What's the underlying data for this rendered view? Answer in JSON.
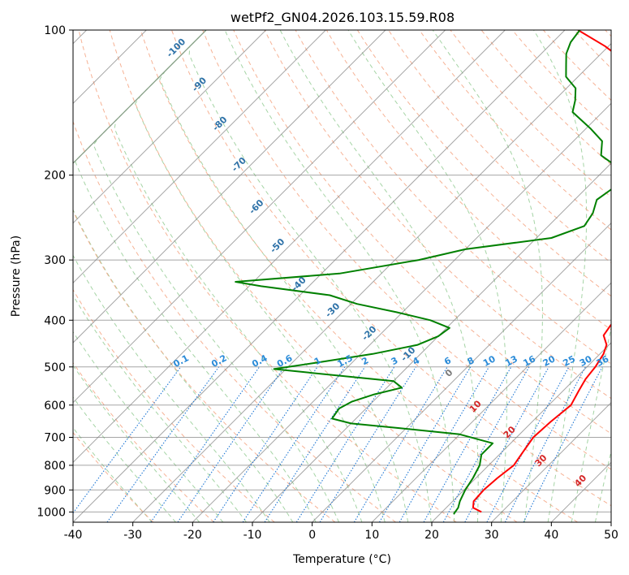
{
  "chart_data": {
    "type": "line",
    "title": "wetPf2_GN04.2026.103.15.59.R08",
    "xlabel": "Temperature (°C)",
    "ylabel": "Pressure (hPa)",
    "xlim": [
      -40,
      50
    ],
    "ylim": [
      1050,
      100
    ],
    "y_scale": "log",
    "x_ticks": [
      "-40",
      "-30",
      "-20",
      "-10",
      "0",
      "10",
      "20",
      "30",
      "40",
      "50"
    ],
    "y_ticks": [
      "100",
      "200",
      "300",
      "400",
      "500",
      "600",
      "700",
      "800",
      "900",
      "1000"
    ],
    "grid": true,
    "series": [
      {
        "color": "#ff0000",
        "points": [
          [
            26.6,
            1000
          ],
          [
            24.5,
            980
          ],
          [
            23.5,
            950
          ],
          [
            23.3,
            900
          ],
          [
            23.6,
            850
          ],
          [
            24.2,
            800
          ],
          [
            23.5,
            750
          ],
          [
            22.8,
            700
          ],
          [
            23.1,
            650
          ],
          [
            23.7,
            600
          ],
          [
            22.6,
            560
          ],
          [
            21.8,
            530
          ],
          [
            21.4,
            500
          ],
          [
            20.6,
            470
          ],
          [
            19.6,
            450
          ],
          [
            17.5,
            430
          ],
          [
            17.0,
            410
          ],
          [
            16.9,
            390
          ],
          [
            16.2,
            370
          ],
          [
            14.1,
            340
          ],
          [
            11.5,
            310
          ],
          [
            9.0,
            280
          ],
          [
            5.5,
            250
          ],
          [
            1.8,
            225
          ],
          [
            -1.5,
            205
          ],
          [
            -3.6,
            190
          ],
          [
            -6.7,
            172
          ],
          [
            -9.2,
            160
          ],
          [
            -13.0,
            145
          ],
          [
            -17.6,
            130
          ],
          [
            -23.4,
            118
          ],
          [
            -30.6,
            108
          ],
          [
            -37.8,
            100
          ]
        ]
      },
      {
        "color": "#008000",
        "points": [
          [
            22.3,
            1010
          ],
          [
            22.0,
            980
          ],
          [
            21.2,
            950
          ],
          [
            20.2,
            900
          ],
          [
            19.5,
            850
          ],
          [
            18.5,
            800
          ],
          [
            17.0,
            760
          ],
          [
            17.0,
            720
          ],
          [
            10.0,
            690
          ],
          [
            -1.0,
            670
          ],
          [
            -10.0,
            655
          ],
          [
            -14.0,
            640
          ],
          [
            -14.5,
            610
          ],
          [
            -13.5,
            590
          ],
          [
            -11.0,
            570
          ],
          [
            -7.5,
            552
          ],
          [
            -10.0,
            535
          ],
          [
            -21.0,
            520
          ],
          [
            -32.0,
            505
          ],
          [
            -26.0,
            490
          ],
          [
            -18.0,
            470
          ],
          [
            -12.0,
            450
          ],
          [
            -10.0,
            432
          ],
          [
            -9.5,
            415
          ],
          [
            -14.0,
            400
          ],
          [
            -21.0,
            385
          ],
          [
            -29.0,
            370
          ],
          [
            -35.0,
            355
          ],
          [
            -48.0,
            340
          ],
          [
            -53.0,
            333
          ],
          [
            -37.0,
            320
          ],
          [
            -26.0,
            300
          ],
          [
            -20.0,
            285
          ],
          [
            -7.5,
            270
          ],
          [
            -4.0,
            255
          ],
          [
            -4.7,
            240
          ],
          [
            -6.3,
            225
          ],
          [
            -5.0,
            205
          ],
          [
            -8.5,
            192
          ],
          [
            -13.0,
            182
          ],
          [
            -15.2,
            170
          ],
          [
            -19.3,
            160
          ],
          [
            -25.0,
            148
          ],
          [
            -26.5,
            140
          ],
          [
            -28.5,
            132
          ],
          [
            -32.0,
            125
          ],
          [
            -34.0,
            118
          ],
          [
            -35.8,
            112
          ],
          [
            -37.0,
            106
          ],
          [
            -37.5,
            100
          ]
        ]
      }
    ],
    "dry_adiabat_labels": [
      "-100",
      "-90",
      "-80",
      "-70",
      "-60",
      "-50",
      "-40",
      "-30",
      "-20",
      "-10"
    ],
    "moist_adiabat_labels": [
      "0",
      "10",
      "20",
      "30",
      "40"
    ],
    "mixing_ratio_labels": [
      "0.1",
      "0.2",
      "0.4",
      "0.6",
      "1",
      "1.5",
      "2",
      "3",
      "4",
      "6",
      "8",
      "10",
      "13",
      "16",
      "20",
      "25",
      "30",
      "36"
    ],
    "colors": {
      "temperature": "#ff0000",
      "dewpoint": "#008000",
      "isotherm": "#808080",
      "isobar": "#808080",
      "dry_adiabat": "#f4a582",
      "moist_adiabat": "#8fc98f",
      "mixing_ratio": "#1f77d4"
    }
  }
}
